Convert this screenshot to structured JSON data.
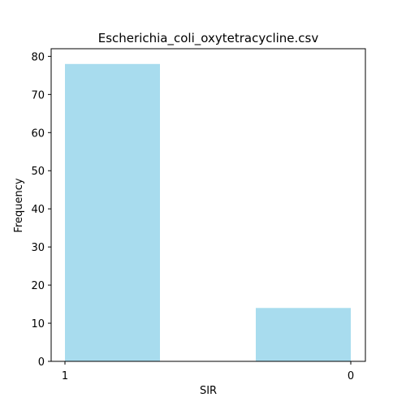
{
  "chart_data": {
    "type": "bar",
    "title": "Escherichia_coli_oxytetracycline.csv",
    "xlabel": "SIR",
    "ylabel": "Frequency",
    "categories": [
      "1",
      "0"
    ],
    "values": [
      78,
      14
    ],
    "ylim": [
      0,
      82
    ],
    "yticks": [
      0,
      10,
      20,
      30,
      40,
      50,
      60,
      70,
      80
    ],
    "grid": false,
    "bar_color": "#a8dcee"
  }
}
